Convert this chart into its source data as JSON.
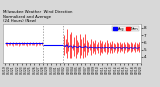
{
  "title": "Milwaukee Weather  Wind Direction\nNormalized and Average\n(24 Hours) (New)",
  "title_fontsize": 2.8,
  "bg_color": "#d8d8d8",
  "plot_bg_color": "#ffffff",
  "y_right_ticks": [
    4,
    5,
    6,
    7,
    8
  ],
  "ylim": [
    3.2,
    8.5
  ],
  "xlim": [
    -1,
    96
  ],
  "vline1_x": 27,
  "vline2_x": 41,
  "legend_blue_label": "Avg",
  "legend_red_label": "Nrm",
  "segment1_y": 5.85,
  "segment1_x_start": 0,
  "segment1_x_end": 27,
  "segment2_y": 5.6,
  "segment2_x_start": 27,
  "segment2_x_end": 41,
  "dot_line_x": [
    41,
    43,
    45,
    47,
    49,
    51,
    53,
    55,
    57,
    59,
    61,
    63,
    65,
    67,
    69,
    71,
    73,
    75,
    77,
    79,
    81,
    83,
    85,
    87,
    89,
    91,
    93,
    95
  ],
  "dot_line_y": [
    5.6,
    5.55,
    5.5,
    5.45,
    5.42,
    5.4,
    5.38,
    5.36,
    5.35,
    5.34,
    5.33,
    5.32,
    5.31,
    5.3,
    5.3,
    5.29,
    5.29,
    5.28,
    5.28,
    5.27,
    5.27,
    5.26,
    5.26,
    5.25,
    5.25,
    5.24,
    5.24,
    5.24
  ],
  "bars_x": [
    42,
    43,
    44,
    45,
    46,
    47,
    48,
    49,
    50,
    51,
    52,
    53,
    54,
    55,
    56,
    57,
    58,
    59,
    60,
    61,
    62,
    63,
    64,
    65,
    66,
    67,
    68,
    69,
    70,
    71,
    72,
    73,
    74,
    75,
    76,
    77,
    78,
    79,
    80,
    81,
    82,
    83,
    84,
    85,
    86,
    87,
    88,
    89,
    90,
    91,
    92,
    93,
    94,
    95
  ],
  "bars_top": [
    7.0,
    6.5,
    7.8,
    6.0,
    7.2,
    7.5,
    5.8,
    6.8,
    7.0,
    6.3,
    6.0,
    7.2,
    6.5,
    6.8,
    5.9,
    7.1,
    6.4,
    6.0,
    5.8,
    6.5,
    6.2,
    5.9,
    6.3,
    5.8,
    6.1,
    6.4,
    5.9,
    6.2,
    5.8,
    6.0,
    6.3,
    5.9,
    6.1,
    5.8,
    6.2,
    5.9,
    5.8,
    6.1,
    5.9,
    6.0,
    5.8,
    5.9,
    6.1,
    5.8,
    6.0,
    5.9,
    5.8,
    6.1,
    5.9,
    5.8,
    6.0,
    5.9,
    5.8,
    6.1
  ],
  "bars_bottom": [
    4.2,
    4.5,
    3.8,
    4.8,
    3.9,
    3.8,
    4.9,
    4.1,
    3.9,
    4.4,
    4.7,
    3.9,
    4.2,
    3.9,
    4.8,
    4.0,
    4.3,
    4.7,
    4.9,
    4.2,
    4.5,
    4.8,
    4.4,
    4.9,
    4.6,
    4.3,
    4.7,
    4.5,
    4.8,
    4.7,
    4.4,
    4.7,
    4.6,
    4.9,
    4.5,
    4.7,
    4.9,
    4.6,
    4.8,
    4.7,
    4.9,
    4.8,
    4.6,
    4.9,
    4.7,
    4.8,
    4.9,
    4.7,
    4.8,
    4.9,
    4.7,
    4.8,
    4.9,
    4.7
  ],
  "avg_line_x": [
    42,
    43,
    44,
    45,
    46,
    47,
    48,
    49,
    50,
    51,
    52,
    53,
    54,
    55,
    56,
    57,
    58,
    59,
    60,
    61,
    62,
    63,
    64,
    65,
    66,
    67,
    68,
    69,
    70,
    71,
    72,
    73,
    74,
    75,
    76,
    77,
    78,
    79,
    80,
    81,
    82,
    83,
    84,
    85,
    86,
    87,
    88,
    89,
    90,
    91,
    92,
    93,
    94,
    95
  ],
  "avg_line_y": [
    5.5,
    5.4,
    5.7,
    5.3,
    5.5,
    5.5,
    5.2,
    5.5,
    5.4,
    5.3,
    5.3,
    5.5,
    5.3,
    5.3,
    5.3,
    5.5,
    5.3,
    5.2,
    5.3,
    5.3,
    5.3,
    5.2,
    5.3,
    5.2,
    5.3,
    5.3,
    5.2,
    5.3,
    5.2,
    5.3,
    5.3,
    5.2,
    5.3,
    5.2,
    5.3,
    5.2,
    5.2,
    5.3,
    5.2,
    5.3,
    5.2,
    5.2,
    5.3,
    5.2,
    5.3,
    5.2,
    5.2,
    5.3,
    5.2,
    5.2,
    5.3,
    5.2,
    5.2,
    5.3
  ],
  "early_bars_x": [
    1,
    2,
    3,
    4,
    5,
    6,
    7,
    8,
    9,
    10,
    11,
    12,
    13,
    14,
    15,
    16,
    17,
    18,
    19,
    20,
    21,
    22,
    23,
    24,
    25,
    26
  ],
  "early_bars_top": [
    6.0,
    6.1,
    5.9,
    6.0,
    5.9,
    6.1,
    5.9,
    6.0,
    5.9,
    6.1,
    5.9,
    6.0,
    5.9,
    6.0,
    5.9,
    6.1,
    5.9,
    6.0,
    5.9,
    6.0,
    5.9,
    6.1,
    5.9,
    6.0,
    5.9,
    6.0
  ],
  "early_bars_bottom": [
    5.6,
    5.5,
    5.7,
    5.6,
    5.7,
    5.5,
    5.7,
    5.6,
    5.7,
    5.5,
    5.7,
    5.6,
    5.7,
    5.6,
    5.7,
    5.5,
    5.7,
    5.6,
    5.7,
    5.6,
    5.7,
    5.5,
    5.7,
    5.6,
    5.7,
    5.6
  ],
  "x_tick_labels": [
    "01/19",
    "01/20",
    "01/21",
    "01/22",
    "01/23",
    "01/24",
    "01/25",
    "01/26",
    "01/27",
    "01/28",
    "01/29",
    "01/30",
    "01/31",
    "02/01",
    "02/02",
    "02/03",
    "02/04",
    "02/05",
    "02/06",
    "02/07",
    "02/08",
    "02/09",
    "02/10",
    "02/11",
    "02/12",
    "02/13",
    "02/14",
    "02/15",
    "02/16",
    "02/17",
    "02/18",
    "02/19",
    "02/20"
  ],
  "x_tick_positions": [
    0,
    3,
    6,
    9,
    12,
    15,
    18,
    21,
    24,
    27,
    30,
    33,
    36,
    39,
    42,
    45,
    48,
    51,
    54,
    57,
    60,
    63,
    66,
    69,
    72,
    75,
    78,
    81,
    84,
    87,
    90,
    93,
    96
  ]
}
